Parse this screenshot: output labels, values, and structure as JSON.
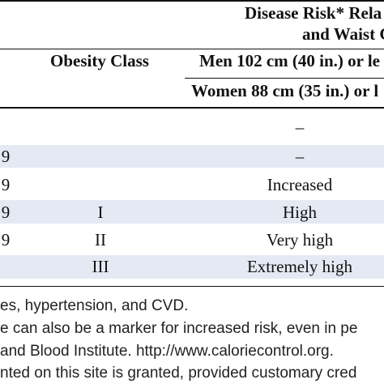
{
  "header": {
    "risk_line1": "Disease Risk* Rela",
    "risk_line2": "and Waist C",
    "obesity_class": "Obesity Class",
    "men_col": "Men 102 cm (40 in.) or le",
    "women_col": "Women 88 cm (35 in.) or l"
  },
  "rows": [
    {
      "bmi_frag": "",
      "obesity_class": "",
      "risk": "–"
    },
    {
      "bmi_frag": "9",
      "obesity_class": "",
      "risk": "–"
    },
    {
      "bmi_frag": "9",
      "obesity_class": "",
      "risk": "Increased"
    },
    {
      "bmi_frag": "9",
      "obesity_class": "I",
      "risk": "High"
    },
    {
      "bmi_frag": "9",
      "obesity_class": "II",
      "risk": "Very high"
    },
    {
      "bmi_frag": "",
      "obesity_class": "III",
      "risk": "Extremely high"
    }
  ],
  "footnotes": [
    "es, hypertension, and CVD.",
    "e can also be a marker for increased risk, even in pe",
    "and Blood Institute. http://www.caloriecontrol.org.",
    "nted on this site is granted, provided customary cred"
  ],
  "colors": {
    "row_shade": "#e4e9f3",
    "rule": "#111111"
  }
}
